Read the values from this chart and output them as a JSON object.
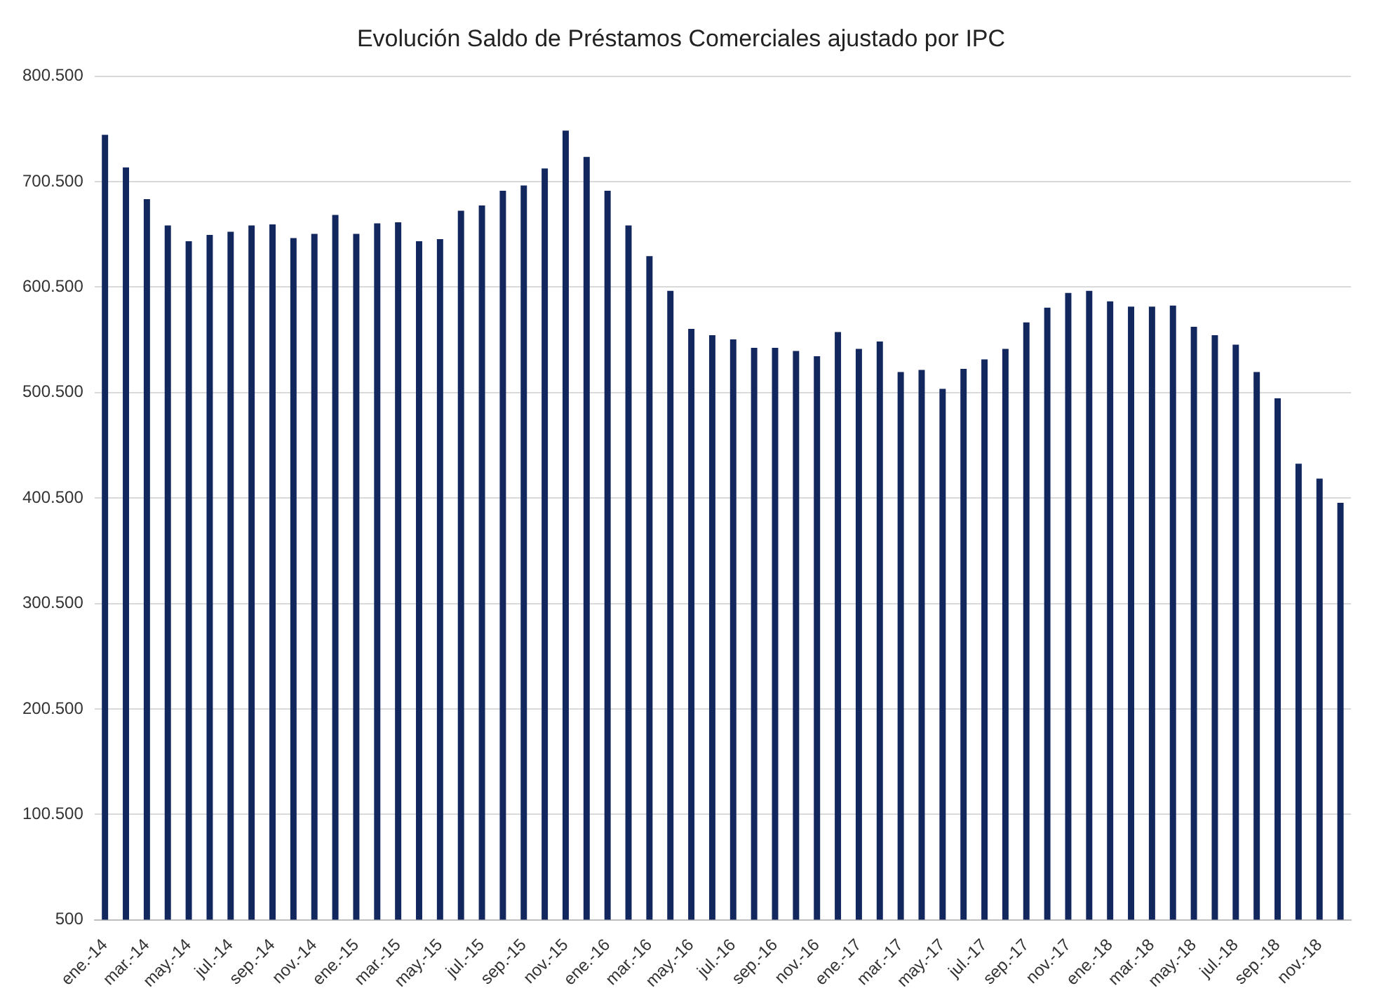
{
  "chart_data": {
    "type": "bar",
    "title": "Evolución Saldo de Préstamos Comerciales ajustado por IPC",
    "categories": [
      "ene.-14",
      null,
      "mar.-14",
      null,
      "may.-14",
      null,
      "jul.-14",
      null,
      "sep.-14",
      null,
      "nov.-14",
      null,
      "ene.-15",
      null,
      "mar.-15",
      null,
      "may.-15",
      null,
      "jul.-15",
      null,
      "sep.-15",
      null,
      "nov.-15",
      null,
      "ene.-16",
      null,
      "mar.-16",
      null,
      "may.-16",
      null,
      "jul.-16",
      null,
      "sep.-16",
      null,
      "nov.-16",
      null,
      "ene.-17",
      null,
      "mar.-17",
      null,
      "may.-17",
      null,
      "jul.-17",
      null,
      "sep.-17",
      null,
      "nov.-17",
      null,
      "ene.-18",
      null,
      "mar.-18",
      null,
      "may.-18",
      null,
      "jul.-18",
      null,
      "sep.-18",
      null,
      "nov.-18",
      null
    ],
    "values": [
      745000,
      714000,
      684000,
      659000,
      644000,
      650000,
      653000,
      659000,
      660000,
      647000,
      651000,
      669000,
      651000,
      661000,
      662000,
      644000,
      646000,
      673000,
      678000,
      692000,
      697000,
      713000,
      749000,
      724000,
      692000,
      659000,
      630000,
      597000,
      561000,
      555000,
      551000,
      543000,
      543000,
      540000,
      535000,
      558000,
      542000,
      549000,
      520000,
      522000,
      504000,
      523000,
      532000,
      542000,
      567000,
      581000,
      595000,
      597000,
      587000,
      582000,
      582000,
      583000,
      563000,
      555000,
      546000,
      520000,
      495000,
      433000,
      419000,
      396000
    ],
    "color": "#12275e",
    "ylim": [
      500,
      800500
    ],
    "yticks": [
      500,
      {
        "value": 100500,
        "label": "100.500"
      },
      {
        "value": 200500,
        "label": "200.500"
      },
      {
        "value": 300500,
        "label": "300.500"
      },
      {
        "value": 400500,
        "label": "400.500"
      },
      {
        "value": 500500,
        "label": "500.500"
      },
      {
        "value": 600500,
        "label": "600.500"
      },
      {
        "value": 700500,
        "label": "700.500"
      },
      {
        "value": 800500,
        "label": "800.500"
      }
    ],
    "grid": "y"
  }
}
